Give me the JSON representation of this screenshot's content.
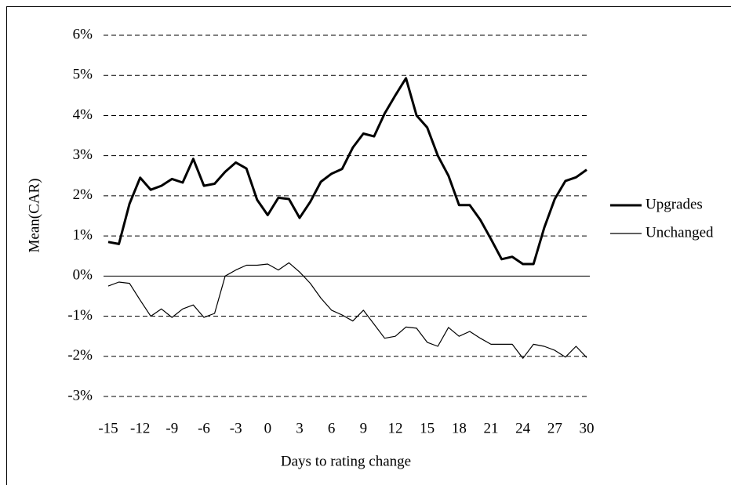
{
  "chart_data": {
    "type": "line",
    "x_label": "Days to rating change",
    "y_label": "Mean(CAR)",
    "x": [
      -15,
      -14,
      -13,
      -12,
      -11,
      -10,
      -9,
      -8,
      -7,
      -6,
      -5,
      -4,
      -3,
      -2,
      -1,
      0,
      1,
      2,
      3,
      4,
      5,
      6,
      7,
      8,
      9,
      10,
      11,
      12,
      13,
      14,
      15,
      16,
      17,
      18,
      19,
      20,
      21,
      22,
      23,
      24,
      25,
      26,
      27,
      28,
      29,
      30
    ],
    "series": [
      {
        "name": "Upgrades",
        "color": "#000000",
        "values": [
          0.85,
          0.8,
          1.8,
          2.45,
          2.15,
          2.25,
          2.42,
          2.33,
          2.92,
          2.25,
          2.3,
          2.6,
          2.83,
          2.68,
          1.9,
          1.52,
          1.95,
          1.92,
          1.45,
          1.85,
          2.35,
          2.55,
          2.67,
          3.2,
          3.55,
          3.48,
          4.05,
          4.5,
          4.93,
          4.0,
          3.7,
          3.0,
          2.5,
          1.77,
          1.77,
          1.4,
          0.92,
          0.42,
          0.48,
          0.3,
          0.3,
          1.2,
          1.92,
          2.37,
          2.46,
          2.65
        ]
      },
      {
        "name": "Unchanged",
        "color": "#000000",
        "values": [
          -0.25,
          -0.15,
          -0.18,
          -0.6,
          -1.0,
          -0.82,
          -1.03,
          -0.82,
          -0.72,
          -1.03,
          -0.93,
          0.0,
          0.15,
          0.27,
          0.27,
          0.3,
          0.15,
          0.33,
          0.1,
          -0.18,
          -0.55,
          -0.85,
          -0.97,
          -1.12,
          -0.85,
          -1.2,
          -1.55,
          -1.5,
          -1.27,
          -1.3,
          -1.65,
          -1.75,
          -1.28,
          -1.5,
          -1.38,
          -1.55,
          -1.7,
          -1.7,
          -1.7,
          -2.05,
          -1.7,
          -1.75,
          -1.85,
          -2.02,
          -1.75,
          -2.03
        ]
      }
    ],
    "xlim": [
      -15,
      30
    ],
    "xticks": [
      -15,
      -12,
      -9,
      -6,
      -3,
      0,
      3,
      6,
      9,
      12,
      15,
      18,
      21,
      24,
      27,
      30
    ],
    "ylim": [
      -3,
      6
    ],
    "yticks": [
      {
        "value": -3,
        "label": "-3%"
      },
      {
        "value": -2,
        "label": "-2%"
      },
      {
        "value": -1,
        "label": "-1%"
      },
      {
        "value": 0,
        "label": "0%"
      },
      {
        "value": 1,
        "label": "1%"
      },
      {
        "value": 2,
        "label": "2%"
      },
      {
        "value": 3,
        "label": "3%"
      },
      {
        "value": 4,
        "label": "4%"
      },
      {
        "value": 5,
        "label": "5%"
      },
      {
        "value": 6,
        "label": "6%"
      }
    ],
    "grid": true,
    "legend": "right"
  }
}
